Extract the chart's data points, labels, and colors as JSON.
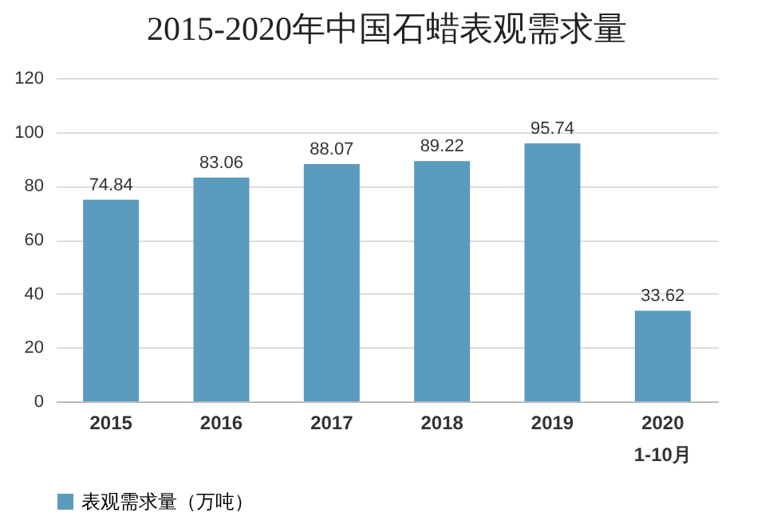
{
  "chart_data": {
    "type": "bar",
    "title": "2015-2020年中国石蜡表观需求量",
    "categories": [
      "2015",
      "2016",
      "2017",
      "2018",
      "2019",
      "2020\n1-10月"
    ],
    "series": [
      {
        "name": "表观需求量（万吨）",
        "color": "#5b9bbd",
        "values": [
          74.84,
          83.06,
          88.07,
          89.22,
          95.74,
          33.62
        ]
      }
    ],
    "ylim": [
      0,
      120
    ],
    "yticks": [
      0,
      20,
      40,
      60,
      80,
      100,
      120
    ],
    "grid": "y",
    "legend": "bottom",
    "data_labels": true
  }
}
